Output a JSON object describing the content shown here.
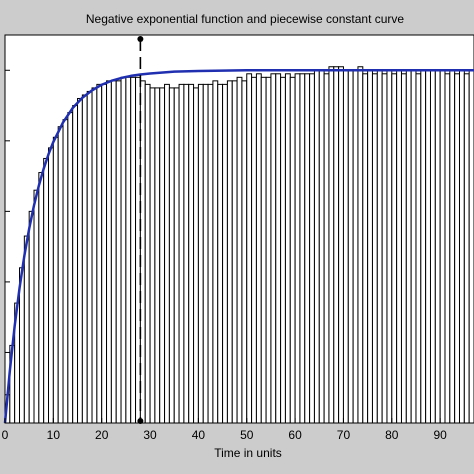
{
  "chart_data": {
    "type": "bar",
    "title": "Negative exponential function and piecewise constant curve",
    "xlabel": "Time in units",
    "ylabel": "",
    "xlim": [
      0,
      97
    ],
    "ylim": [
      0,
      1.1
    ],
    "xticks": [
      0,
      10,
      20,
      30,
      40,
      50,
      60,
      70,
      80,
      90
    ],
    "yticks": [
      0,
      0.2,
      0.4,
      0.6,
      0.8,
      1.0
    ],
    "grid": false,
    "colors": {
      "figure_background": "#cccccc",
      "axes_background": "#ffffff",
      "bar_edge": "#000000",
      "curve": "#1f2fb0",
      "marker_line": "#000000"
    },
    "bar_width": 1,
    "series": [
      {
        "type": "bar",
        "x": [
          0,
          1,
          2,
          3,
          4,
          5,
          6,
          7,
          8,
          9,
          10,
          11,
          12,
          13,
          14,
          15,
          16,
          17,
          18,
          19,
          20,
          21,
          22,
          23,
          24,
          25,
          26,
          27,
          28,
          29,
          30,
          31,
          32,
          33,
          34,
          35,
          36,
          37,
          38,
          39,
          40,
          41,
          42,
          43,
          44,
          45,
          46,
          47,
          48,
          49,
          50,
          51,
          52,
          53,
          54,
          55,
          56,
          57,
          58,
          59,
          60,
          61,
          62,
          63,
          64,
          65,
          66,
          67,
          68,
          69,
          70,
          71,
          72,
          73,
          74,
          75,
          76,
          77,
          78,
          79,
          80,
          81,
          82,
          83,
          84,
          85,
          86,
          87,
          88,
          89,
          90,
          91,
          92,
          93,
          94,
          95,
          96
        ],
        "values": [
          0.08,
          0.22,
          0.34,
          0.44,
          0.53,
          0.6,
          0.66,
          0.71,
          0.75,
          0.78,
          0.81,
          0.84,
          0.86,
          0.88,
          0.9,
          0.92,
          0.93,
          0.94,
          0.95,
          0.96,
          0.96,
          0.97,
          0.97,
          0.97,
          0.98,
          0.98,
          0.98,
          0.98,
          0.97,
          0.96,
          0.95,
          0.95,
          0.95,
          0.96,
          0.95,
          0.95,
          0.96,
          0.96,
          0.96,
          0.95,
          0.96,
          0.96,
          0.96,
          0.97,
          0.96,
          0.96,
          0.97,
          0.97,
          0.98,
          0.97,
          0.99,
          0.98,
          0.99,
          0.98,
          0.98,
          0.99,
          0.99,
          0.98,
          0.99,
          0.98,
          0.99,
          0.99,
          0.99,
          0.99,
          1.0,
          1.0,
          0.99,
          1.01,
          1.01,
          1.01,
          1.0,
          1.0,
          1.0,
          1.01,
          0.99,
          1.0,
          0.99,
          1.0,
          0.99,
          1.0,
          0.99,
          1.0,
          0.99,
          1.0,
          1.0,
          0.99,
          1.0,
          1.0,
          1.0,
          1.0,
          1.0,
          0.99,
          1.0,
          0.99,
          1.0,
          0.99,
          1.0
        ]
      },
      {
        "type": "line",
        "x": [
          0,
          1,
          2,
          3,
          4,
          5,
          6,
          7,
          8,
          9,
          10,
          12,
          14,
          16,
          18,
          20,
          22,
          24,
          26,
          28,
          30,
          35,
          40,
          45,
          50,
          55,
          60,
          65,
          70,
          75,
          80,
          85,
          90,
          97
        ],
        "values": [
          0.0,
          0.148,
          0.275,
          0.382,
          0.474,
          0.551,
          0.617,
          0.673,
          0.721,
          0.762,
          0.797,
          0.852,
          0.893,
          0.922,
          0.943,
          0.959,
          0.97,
          0.978,
          0.984,
          0.988,
          0.991,
          0.996,
          0.998,
          0.999,
          1.0,
          1.0,
          1.0,
          1.0,
          1.0,
          1.0,
          1.0,
          1.0,
          1.0,
          1.0
        ]
      }
    ],
    "vertical_marker": {
      "x": 28,
      "y_top": 1.0
    }
  }
}
